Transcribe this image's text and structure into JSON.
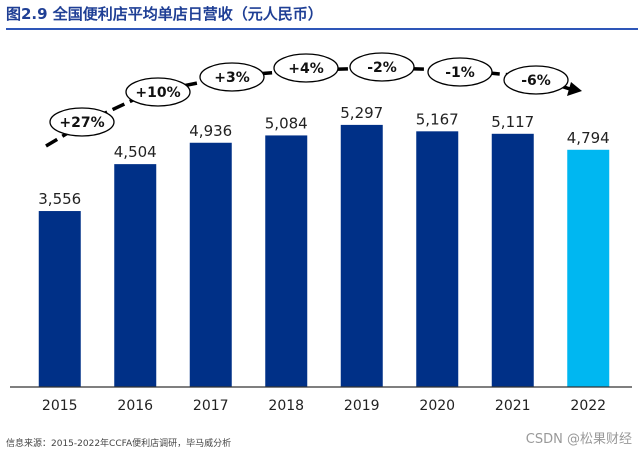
{
  "title": "图2.9 全国便利店平均单店日营收（元人民币）",
  "source": "信息来源：2015-2022年CCFA便利店调研，毕马威分析",
  "watermark": "CSDN @松果财经",
  "colors": {
    "bar": "#003087",
    "highlight": "#00b7f1",
    "title": "#1f3f95",
    "axis": "#333333"
  },
  "chart_data": {
    "type": "bar",
    "title": "全国便利店平均单店日营收（元人民币）",
    "xlabel": "",
    "ylabel": "",
    "categories": [
      "2015",
      "2016",
      "2017",
      "2018",
      "2019",
      "2020",
      "2021",
      "2022"
    ],
    "values": [
      3556,
      4504,
      4936,
      5084,
      5297,
      5167,
      5117,
      4794
    ],
    "value_labels": [
      "3,556",
      "4,504",
      "4,936",
      "5,084",
      "5,297",
      "5,167",
      "5,117",
      "4,794"
    ],
    "highlight_index": 7,
    "ylim": [
      0,
      5800
    ],
    "grid": false,
    "growth_labels": [
      "+27%",
      "+10%",
      "+3%",
      "+4%",
      "-2%",
      "-1%",
      "-6%"
    ]
  }
}
